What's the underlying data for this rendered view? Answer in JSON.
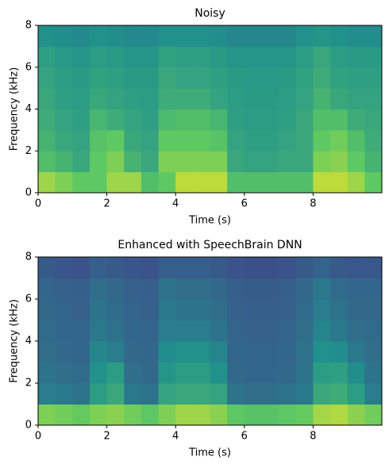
{
  "chart_data": [
    {
      "type": "spectrogram",
      "title": "Noisy",
      "xlabel": "Time (s)",
      "ylabel": "Frequency (kHz)",
      "xlim": [
        0,
        10
      ],
      "ylim": [
        0,
        8
      ],
      "xticks": [
        0,
        2,
        4,
        6,
        8
      ],
      "yticks": [
        0,
        2,
        4,
        6,
        8
      ],
      "colormap": "viridis",
      "values": [
        [
          0.85,
          0.8,
          0.75,
          0.75,
          0.85,
          0.85,
          0.7,
          0.75,
          0.9,
          0.9,
          0.9,
          0.7,
          0.7,
          0.7,
          0.7,
          0.7,
          0.9,
          0.9,
          0.85,
          0.75
        ],
        [
          0.7,
          0.65,
          0.6,
          0.75,
          0.8,
          0.65,
          0.6,
          0.8,
          0.8,
          0.8,
          0.8,
          0.6,
          0.58,
          0.58,
          0.6,
          0.6,
          0.8,
          0.82,
          0.75,
          0.65
        ],
        [
          0.65,
          0.6,
          0.58,
          0.72,
          0.75,
          0.6,
          0.58,
          0.75,
          0.75,
          0.75,
          0.72,
          0.58,
          0.56,
          0.56,
          0.58,
          0.6,
          0.75,
          0.78,
          0.7,
          0.62
        ],
        [
          0.62,
          0.58,
          0.56,
          0.66,
          0.62,
          0.58,
          0.56,
          0.68,
          0.7,
          0.7,
          0.66,
          0.56,
          0.55,
          0.55,
          0.56,
          0.6,
          0.7,
          0.7,
          0.62,
          0.6
        ],
        [
          0.6,
          0.56,
          0.55,
          0.6,
          0.58,
          0.56,
          0.55,
          0.62,
          0.62,
          0.62,
          0.58,
          0.55,
          0.54,
          0.54,
          0.55,
          0.58,
          0.65,
          0.6,
          0.58,
          0.58
        ],
        [
          0.58,
          0.55,
          0.54,
          0.57,
          0.56,
          0.54,
          0.54,
          0.6,
          0.58,
          0.58,
          0.56,
          0.54,
          0.53,
          0.53,
          0.54,
          0.57,
          0.62,
          0.57,
          0.56,
          0.56
        ],
        [
          0.56,
          0.53,
          0.52,
          0.55,
          0.54,
          0.52,
          0.52,
          0.57,
          0.56,
          0.56,
          0.54,
          0.52,
          0.52,
          0.52,
          0.52,
          0.55,
          0.6,
          0.55,
          0.54,
          0.54
        ],
        [
          0.5,
          0.48,
          0.47,
          0.5,
          0.49,
          0.47,
          0.47,
          0.5,
          0.5,
          0.5,
          0.48,
          0.46,
          0.46,
          0.46,
          0.46,
          0.5,
          0.52,
          0.5,
          0.48,
          0.48
        ]
      ]
    },
    {
      "type": "spectrogram",
      "title": "Enhanced with SpeechBrain DNN",
      "xlabel": "Time (s)",
      "ylabel": "Frequency (kHz)",
      "xlim": [
        0,
        10
      ],
      "ylim": [
        0,
        8
      ],
      "xticks": [
        0,
        2,
        4,
        6,
        8
      ],
      "yticks": [
        0,
        2,
        4,
        6,
        8
      ],
      "colormap": "viridis",
      "values": [
        [
          0.8,
          0.78,
          0.76,
          0.8,
          0.82,
          0.78,
          0.74,
          0.8,
          0.85,
          0.85,
          0.82,
          0.74,
          0.72,
          0.72,
          0.74,
          0.76,
          0.86,
          0.88,
          0.82,
          0.78
        ],
        [
          0.42,
          0.4,
          0.38,
          0.55,
          0.6,
          0.4,
          0.38,
          0.58,
          0.6,
          0.6,
          0.58,
          0.38,
          0.36,
          0.36,
          0.38,
          0.4,
          0.6,
          0.62,
          0.55,
          0.42
        ],
        [
          0.38,
          0.36,
          0.35,
          0.5,
          0.55,
          0.36,
          0.34,
          0.52,
          0.55,
          0.55,
          0.5,
          0.34,
          0.33,
          0.33,
          0.34,
          0.38,
          0.55,
          0.56,
          0.48,
          0.38
        ],
        [
          0.36,
          0.34,
          0.33,
          0.46,
          0.42,
          0.34,
          0.33,
          0.48,
          0.5,
          0.5,
          0.45,
          0.33,
          0.32,
          0.32,
          0.33,
          0.37,
          0.5,
          0.48,
          0.4,
          0.36
        ],
        [
          0.35,
          0.33,
          0.32,
          0.4,
          0.37,
          0.33,
          0.32,
          0.42,
          0.42,
          0.42,
          0.38,
          0.32,
          0.31,
          0.31,
          0.32,
          0.36,
          0.45,
          0.4,
          0.36,
          0.35
        ],
        [
          0.34,
          0.32,
          0.31,
          0.38,
          0.35,
          0.32,
          0.31,
          0.4,
          0.38,
          0.38,
          0.36,
          0.31,
          0.3,
          0.3,
          0.31,
          0.35,
          0.42,
          0.37,
          0.34,
          0.34
        ],
        [
          0.33,
          0.31,
          0.3,
          0.36,
          0.34,
          0.31,
          0.3,
          0.38,
          0.36,
          0.36,
          0.34,
          0.3,
          0.29,
          0.29,
          0.3,
          0.34,
          0.4,
          0.35,
          0.33,
          0.33
        ],
        [
          0.28,
          0.26,
          0.25,
          0.3,
          0.28,
          0.26,
          0.25,
          0.3,
          0.3,
          0.3,
          0.28,
          0.25,
          0.24,
          0.24,
          0.25,
          0.28,
          0.32,
          0.28,
          0.27,
          0.27
        ]
      ]
    }
  ]
}
